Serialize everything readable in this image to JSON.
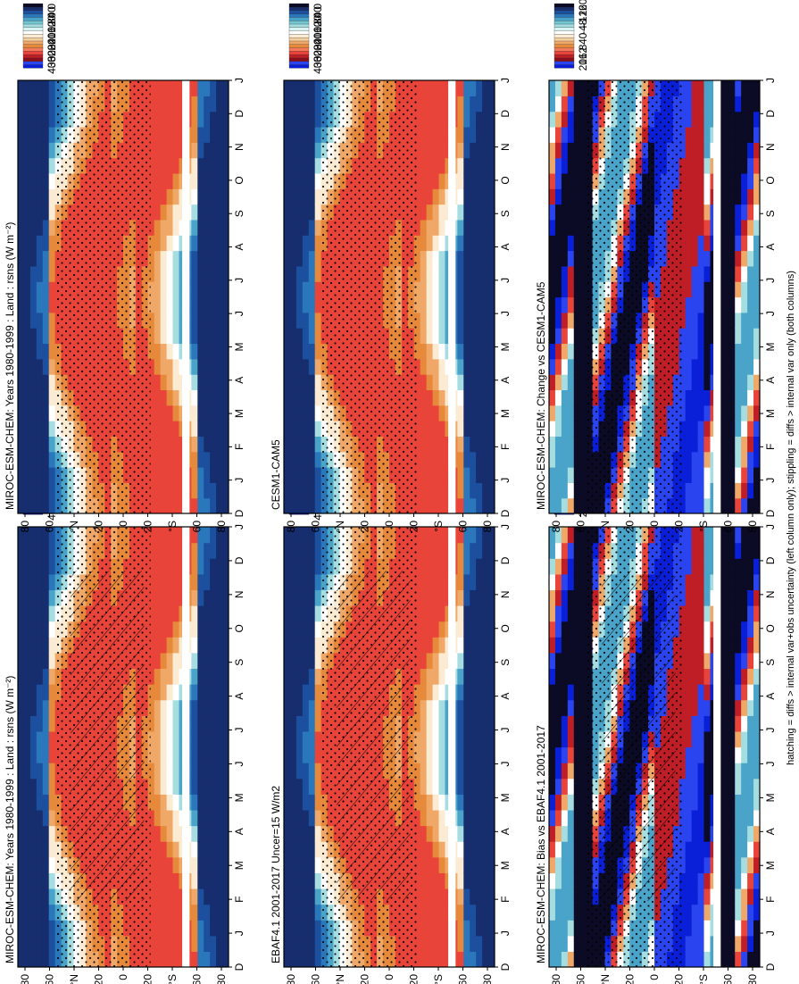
{
  "footnote": "hatching = diffs > internal var+obs uncertainty (left column only); stippling = diffs > internal var only (both columns)",
  "months": [
    "D",
    "J",
    "F",
    "M",
    "A",
    "M",
    "J",
    "J",
    "A",
    "S",
    "O",
    "N",
    "D",
    "J"
  ],
  "lat_ticks": [
    "80",
    "60",
    "°N",
    "20",
    "0",
    "20",
    "°S",
    "60",
    "80"
  ],
  "abs_scale": {
    "labels": [
      "400",
      "360",
      "320",
      "280",
      "240",
      "200",
      "160",
      "120",
      "80",
      "40",
      "0"
    ],
    "colors": [
      "#0a1fd8",
      "#2a45f0",
      "#8a0f1a",
      "#c01e26",
      "#e8443a",
      "#f4795b",
      "#e6893a",
      "#f0a868",
      "#f5d0a0",
      "#fbebd2",
      "#ffffff",
      "#d8f3f3",
      "#a6dde0",
      "#72c4cf",
      "#4aa3c8",
      "#2a78bb",
      "#1c4f9e",
      "#162d6e",
      "#0b0b25"
    ]
  },
  "diff_scale": {
    "labels": [
      "20",
      "16",
      "12",
      "8",
      "4",
      "0",
      "-4",
      "-8",
      "-12",
      "-16",
      "-20"
    ],
    "colors": [
      "#0a1fd8",
      "#2a45f0",
      "#8a0f1a",
      "#c01e26",
      "#e8443a",
      "#f4795b",
      "#e6893a",
      "#f0a868",
      "#f5d0a0",
      "#fbebd2",
      "#ffffff",
      "#d8f3f3",
      "#a6dde0",
      "#72c4cf",
      "#4aa3c8",
      "#2a78bb",
      "#1c4f9e",
      "#162d6e",
      "#0b0b25"
    ]
  },
  "panels": [
    {
      "id": "top-left",
      "title": "MIROC-ESM-CHEM: Years 1980-1999 : Land : rsns (W m⁻²)",
      "kind": "abs",
      "hatch": true
    },
    {
      "id": "top-right",
      "title": "MIROC-ESM-CHEM: Years 1980-1999 : Land : rsns (W m⁻²)",
      "kind": "abs",
      "hatch": false
    },
    {
      "id": "mid-left",
      "title": "EBAF4.1 2001-2017 Uncer=15 W/m2",
      "kind": "abs",
      "hatch": true
    },
    {
      "id": "mid-right",
      "title": "CESM1-CAM5",
      "kind": "abs",
      "hatch": false
    },
    {
      "id": "bot-left",
      "title": "MIROC-ESM-CHEM: Bias vs EBAF4.1 2001-2017",
      "kind": "diff",
      "hatch": true
    },
    {
      "id": "bot-right",
      "title": "MIROC-ESM-CHEM: Change vs CESM1-CAM5",
      "kind": "diff",
      "hatch": false
    }
  ],
  "chart_data": [
    {
      "type": "heatmap",
      "title": "MIROC-ESM-CHEM: Years 1980-1999 : Land : rsns (W m-2)",
      "xlabel": "",
      "ylabel": "",
      "x_categories": [
        "D",
        "J",
        "F",
        "M",
        "A",
        "M",
        "J",
        "J",
        "A",
        "S",
        "O",
        "N",
        "D",
        "J"
      ],
      "y_ticks": [
        "80",
        "60",
        "N",
        "20",
        "0",
        "20",
        "S",
        "60",
        "80"
      ],
      "colorbar": {
        "min": 0,
        "max": 400,
        "ticks": [
          400,
          360,
          320,
          280,
          240,
          200,
          160,
          120,
          80,
          40,
          0
        ]
      }
    },
    {
      "type": "heatmap",
      "title": "MIROC-ESM-CHEM: Years 1980-1999 : Land : rsns (W m-2)",
      "xlabel": "",
      "ylabel": "",
      "x_categories": [
        "D",
        "J",
        "F",
        "M",
        "A",
        "M",
        "J",
        "J",
        "A",
        "S",
        "O",
        "N",
        "D",
        "J"
      ],
      "y_ticks": [
        "80",
        "60",
        "N",
        "20",
        "0",
        "20",
        "S",
        "60",
        "80"
      ],
      "colorbar": {
        "min": 0,
        "max": 400,
        "ticks": [
          400,
          360,
          320,
          280,
          240,
          200,
          160,
          120,
          80,
          40,
          0
        ]
      }
    },
    {
      "type": "heatmap",
      "title": "EBAF4.1 2001-2017 Uncer=15 W/m2",
      "xlabel": "",
      "ylabel": "",
      "x_categories": [
        "D",
        "J",
        "F",
        "M",
        "A",
        "M",
        "J",
        "J",
        "A",
        "S",
        "O",
        "N",
        "D",
        "J"
      ],
      "y_ticks": [
        "80",
        "60",
        "N",
        "20",
        "0",
        "20",
        "S",
        "60",
        "80"
      ],
      "colorbar": {
        "min": 0,
        "max": 400,
        "ticks": [
          400,
          360,
          320,
          280,
          240,
          200,
          160,
          120,
          80,
          40,
          0
        ]
      }
    },
    {
      "type": "heatmap",
      "title": "CESM1-CAM5",
      "xlabel": "",
      "ylabel": "",
      "x_categories": [
        "D",
        "J",
        "F",
        "M",
        "A",
        "M",
        "J",
        "J",
        "A",
        "S",
        "O",
        "N",
        "D",
        "J"
      ],
      "y_ticks": [
        "80",
        "60",
        "N",
        "20",
        "0",
        "20",
        "S",
        "60",
        "80"
      ],
      "colorbar": {
        "min": 0,
        "max": 400,
        "ticks": [
          400,
          360,
          320,
          280,
          240,
          200,
          160,
          120,
          80,
          40,
          0
        ]
      }
    },
    {
      "type": "heatmap",
      "title": "MIROC-ESM-CHEM: Bias vs EBAF4.1 2001-2017",
      "xlabel": "",
      "ylabel": "",
      "x_categories": [
        "D",
        "J",
        "F",
        "M",
        "A",
        "M",
        "J",
        "J",
        "A",
        "S",
        "O",
        "N",
        "D",
        "J"
      ],
      "y_ticks": [
        "80",
        "60",
        "N",
        "20",
        "0",
        "20",
        "S",
        "60",
        "80"
      ],
      "colorbar": {
        "min": -20,
        "max": 20,
        "ticks": [
          20,
          16,
          12,
          8,
          4,
          0,
          -4,
          -8,
          -12,
          -16,
          -20
        ]
      }
    },
    {
      "type": "heatmap",
      "title": "MIROC-ESM-CHEM: Change vs CESM1-CAM5",
      "xlabel": "",
      "ylabel": "",
      "x_categories": [
        "D",
        "J",
        "F",
        "M",
        "A",
        "M",
        "J",
        "J",
        "A",
        "S",
        "O",
        "N",
        "D",
        "J"
      ],
      "y_ticks": [
        "80",
        "60",
        "N",
        "20",
        "0",
        "20",
        "S",
        "60",
        "80"
      ],
      "colorbar": {
        "min": -20,
        "max": 20,
        "ticks": [
          20,
          16,
          12,
          8,
          4,
          0,
          -4,
          -8,
          -12,
          -16,
          -20
        ]
      }
    }
  ]
}
